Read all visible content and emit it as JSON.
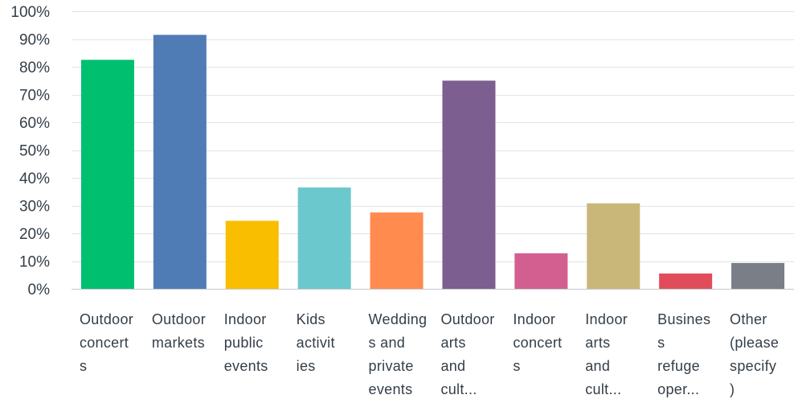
{
  "chart_data": {
    "type": "bar",
    "categories": [
      [
        "Outdoor",
        "concert",
        "s"
      ],
      [
        "Outdoor",
        "markets"
      ],
      [
        "Indoor",
        "public",
        "events"
      ],
      [
        "Kids",
        "activit",
        "ies"
      ],
      [
        "Wedding",
        "s and",
        "private",
        "events"
      ],
      [
        "Outdoor",
        "arts",
        "and",
        "cult..."
      ],
      [
        "Indoor",
        "concert",
        "s"
      ],
      [
        "Indoor",
        "arts",
        "and",
        "cult..."
      ],
      [
        "Busines",
        "s",
        "refuge",
        "oper..."
      ],
      [
        "Other",
        "(please",
        "specify",
        ")"
      ]
    ],
    "values": [
      82.5,
      91.5,
      24.5,
      36.5,
      27.5,
      75,
      12.8,
      30.8,
      5.5,
      9.3
    ],
    "colors": [
      "#00bf6f",
      "#507cb6",
      "#f9be00",
      "#6bc8cd",
      "#ff8b4f",
      "#7d5e90",
      "#d25f90",
      "#c9b77a",
      "#e14c5a",
      "#7a7f87"
    ],
    "yticks": [
      "0%",
      "10%",
      "20%",
      "30%",
      "40%",
      "50%",
      "60%",
      "70%",
      "80%",
      "90%",
      "100%"
    ],
    "ylim": [
      0,
      100
    ],
    "grid": true,
    "title": "",
    "xlabel": "",
    "ylabel": ""
  }
}
